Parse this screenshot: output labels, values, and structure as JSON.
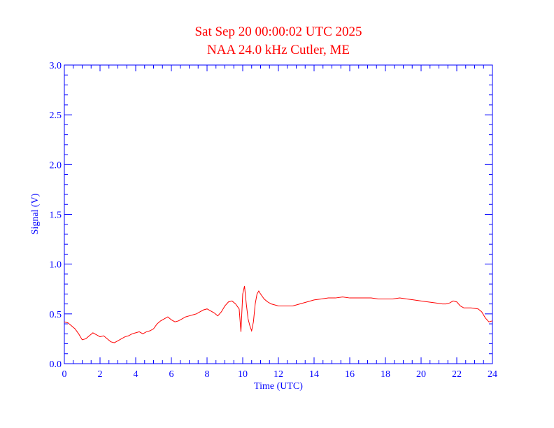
{
  "colors": {
    "title": "#ff0000",
    "axes": "#0000ff",
    "line": "#ff0000",
    "background": "#ffffff"
  },
  "chart_data": {
    "type": "line",
    "title": "Sat Sep 20 00:00:02 UTC 2025",
    "subtitle": "NAA 24.0 kHz Cutler, ME",
    "xlabel": "Time (UTC)",
    "ylabel": "Signal (V)",
    "xlim": [
      0,
      24
    ],
    "ylim": [
      0,
      3.0
    ],
    "x_ticks": [
      0,
      2,
      4,
      6,
      8,
      10,
      12,
      14,
      16,
      18,
      20,
      22,
      24
    ],
    "x_tick_labels": [
      "0",
      "2",
      "4",
      "6",
      "8",
      "10",
      "12",
      "14",
      "16",
      "18",
      "20",
      "22",
      "24"
    ],
    "y_ticks": [
      0,
      0.5,
      1.0,
      1.5,
      2.0,
      2.5,
      3.0
    ],
    "y_tick_labels": [
      "0.0",
      "0.5",
      "1.0",
      "1.5",
      "2.0",
      "2.5",
      "3.0"
    ],
    "grid": false,
    "series": [
      {
        "x": [
          0,
          0.2,
          0.4,
          0.6,
          0.8,
          1.0,
          1.2,
          1.4,
          1.6,
          1.8,
          2.0,
          2.2,
          2.4,
          2.6,
          2.8,
          3.0,
          3.2,
          3.4,
          3.6,
          3.8,
          4.0,
          4.2,
          4.4,
          4.6,
          4.8,
          5.0,
          5.2,
          5.4,
          5.6,
          5.8,
          6.0,
          6.2,
          6.4,
          6.6,
          6.8,
          7.0,
          7.2,
          7.4,
          7.6,
          7.8,
          8.0,
          8.2,
          8.4,
          8.6,
          8.8,
          9.0,
          9.2,
          9.4,
          9.6,
          9.8,
          9.9,
          10.0,
          10.1,
          10.2,
          10.3,
          10.4,
          10.5,
          10.6,
          10.7,
          10.8,
          10.9,
          11.0,
          11.2,
          11.4,
          11.6,
          11.8,
          12.0,
          12.4,
          12.8,
          13.2,
          13.6,
          14.0,
          14.4,
          14.8,
          15.2,
          15.6,
          16.0,
          16.4,
          16.8,
          17.2,
          17.6,
          18.0,
          18.4,
          18.8,
          19.2,
          19.6,
          20.0,
          20.4,
          20.8,
          21.2,
          21.4,
          21.6,
          21.8,
          22.0,
          22.2,
          22.4,
          22.8,
          23.2,
          23.4,
          23.6,
          23.8,
          24.0
        ],
        "y": [
          0.42,
          0.41,
          0.38,
          0.35,
          0.3,
          0.24,
          0.25,
          0.28,
          0.31,
          0.29,
          0.27,
          0.28,
          0.25,
          0.22,
          0.21,
          0.23,
          0.25,
          0.27,
          0.28,
          0.3,
          0.31,
          0.32,
          0.3,
          0.32,
          0.33,
          0.35,
          0.4,
          0.43,
          0.45,
          0.47,
          0.44,
          0.42,
          0.43,
          0.45,
          0.47,
          0.48,
          0.49,
          0.5,
          0.52,
          0.54,
          0.55,
          0.53,
          0.51,
          0.48,
          0.52,
          0.58,
          0.62,
          0.63,
          0.6,
          0.55,
          0.32,
          0.7,
          0.78,
          0.6,
          0.45,
          0.38,
          0.33,
          0.42,
          0.6,
          0.7,
          0.73,
          0.7,
          0.65,
          0.62,
          0.6,
          0.59,
          0.58,
          0.58,
          0.58,
          0.6,
          0.62,
          0.64,
          0.65,
          0.66,
          0.66,
          0.67,
          0.66,
          0.66,
          0.66,
          0.66,
          0.65,
          0.65,
          0.65,
          0.66,
          0.65,
          0.64,
          0.63,
          0.62,
          0.61,
          0.6,
          0.6,
          0.61,
          0.63,
          0.62,
          0.58,
          0.56,
          0.56,
          0.55,
          0.52,
          0.46,
          0.42,
          0.43
        ]
      }
    ]
  }
}
